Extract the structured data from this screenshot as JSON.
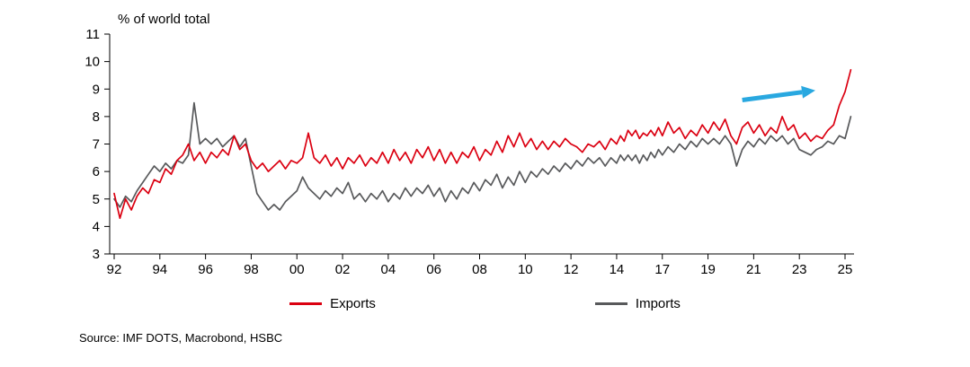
{
  "source": {
    "text": "Source: IMF DOTS, Macrobond, HSBC"
  },
  "chart_data": {
    "type": "line",
    "title": "% of world total",
    "xlabel": "",
    "ylabel": "% of world total",
    "ylim": [
      3,
      11
    ],
    "grid": false,
    "legend_position": "bottom",
    "y_ticks": [
      3,
      4,
      5,
      6,
      7,
      8,
      9,
      10,
      11
    ],
    "x_ticks": [
      {
        "label": "92",
        "year": 1992
      },
      {
        "label": "94",
        "year": 1994
      },
      {
        "label": "96",
        "year": 1996
      },
      {
        "label": "98",
        "year": 1998
      },
      {
        "label": "00",
        "year": 2000
      },
      {
        "label": "02",
        "year": 2002
      },
      {
        "label": "04",
        "year": 2004
      },
      {
        "label": "06",
        "year": 2006
      },
      {
        "label": "08",
        "year": 2008
      },
      {
        "label": "10",
        "year": 2010
      },
      {
        "label": "12",
        "year": 2012
      },
      {
        "label": "14",
        "year": 2014
      },
      {
        "label": "17",
        "year": 2017
      },
      {
        "label": "19",
        "year": 2019
      },
      {
        "label": "21",
        "year": 2021
      },
      {
        "label": "23",
        "year": 2023
      },
      {
        "label": "25",
        "year": 2025
      }
    ],
    "x_start": 1992.0,
    "x_step": 0.25,
    "series": [
      {
        "name": "Exports",
        "color": "#db0011",
        "values": [
          5.2,
          4.3,
          5.0,
          4.6,
          5.1,
          5.4,
          5.2,
          5.7,
          5.6,
          6.1,
          5.9,
          6.4,
          6.6,
          7.0,
          6.4,
          6.7,
          6.3,
          6.7,
          6.5,
          6.8,
          6.6,
          7.3,
          6.8,
          7.0,
          6.4,
          6.1,
          6.3,
          6.0,
          6.2,
          6.4,
          6.1,
          6.4,
          6.3,
          6.5,
          7.4,
          6.5,
          6.3,
          6.6,
          6.2,
          6.5,
          6.1,
          6.5,
          6.3,
          6.6,
          6.2,
          6.5,
          6.3,
          6.7,
          6.3,
          6.8,
          6.4,
          6.7,
          6.3,
          6.8,
          6.5,
          6.9,
          6.4,
          6.8,
          6.3,
          6.7,
          6.3,
          6.7,
          6.5,
          6.9,
          6.4,
          6.8,
          6.6,
          7.1,
          6.7,
          7.3,
          6.9,
          7.4,
          6.9,
          7.2,
          6.8,
          7.1,
          6.8,
          7.1,
          6.9,
          7.2,
          7.0,
          6.9,
          6.7,
          7.0,
          6.9,
          7.1,
          6.8,
          7.2,
          7.0,
          7.3,
          7.1,
          7.5,
          7.3,
          7.5,
          7.2,
          7.4,
          7.3,
          7.5,
          7.3,
          7.6,
          7.3,
          7.8,
          7.4,
          7.6,
          7.2,
          7.5,
          7.3,
          7.7,
          7.4,
          7.8,
          7.5,
          7.9,
          7.3,
          7.0,
          7.6,
          7.8,
          7.4,
          7.7,
          7.3,
          7.6,
          7.4,
          8.0,
          7.5,
          7.7,
          7.2,
          7.4,
          7.1,
          7.3,
          7.2,
          7.5,
          7.7,
          8.4,
          8.9,
          9.7
        ]
      },
      {
        "name": "Imports",
        "color": "#58595b",
        "values": [
          5.0,
          4.7,
          5.1,
          4.9,
          5.3,
          5.6,
          5.9,
          6.2,
          6.0,
          6.3,
          6.1,
          6.4,
          6.3,
          6.6,
          8.5,
          7.0,
          7.2,
          7.0,
          7.2,
          6.9,
          7.1,
          7.3,
          6.9,
          7.2,
          6.2,
          5.2,
          4.9,
          4.6,
          4.8,
          4.6,
          4.9,
          5.1,
          5.3,
          5.8,
          5.4,
          5.2,
          5.0,
          5.3,
          5.1,
          5.4,
          5.2,
          5.6,
          5.0,
          5.2,
          4.9,
          5.2,
          5.0,
          5.3,
          4.9,
          5.2,
          5.0,
          5.4,
          5.1,
          5.4,
          5.2,
          5.5,
          5.1,
          5.4,
          4.9,
          5.3,
          5.0,
          5.4,
          5.2,
          5.6,
          5.3,
          5.7,
          5.5,
          5.9,
          5.4,
          5.8,
          5.5,
          6.0,
          5.6,
          6.0,
          5.8,
          6.1,
          5.9,
          6.2,
          6.0,
          6.3,
          6.1,
          6.4,
          6.2,
          6.5,
          6.3,
          6.5,
          6.2,
          6.5,
          6.3,
          6.6,
          6.4,
          6.6,
          6.4,
          6.6,
          6.3,
          6.6,
          6.4,
          6.7,
          6.5,
          6.8,
          6.6,
          6.9,
          6.7,
          7.0,
          6.8,
          7.1,
          6.9,
          7.2,
          7.0,
          7.2,
          7.0,
          7.3,
          7.0,
          6.2,
          6.8,
          7.1,
          6.9,
          7.2,
          7.0,
          7.3,
          7.1,
          7.3,
          7.0,
          7.2,
          6.8,
          6.7,
          6.6,
          6.8,
          6.9,
          7.1,
          7.0,
          7.3,
          7.2,
          8.0
        ]
      }
    ],
    "annotation_arrow": {
      "from": {
        "x": 2020.5,
        "y": 8.6
      },
      "to": {
        "x": 2023.7,
        "y": 8.95
      },
      "color": "#29a8e0"
    }
  }
}
